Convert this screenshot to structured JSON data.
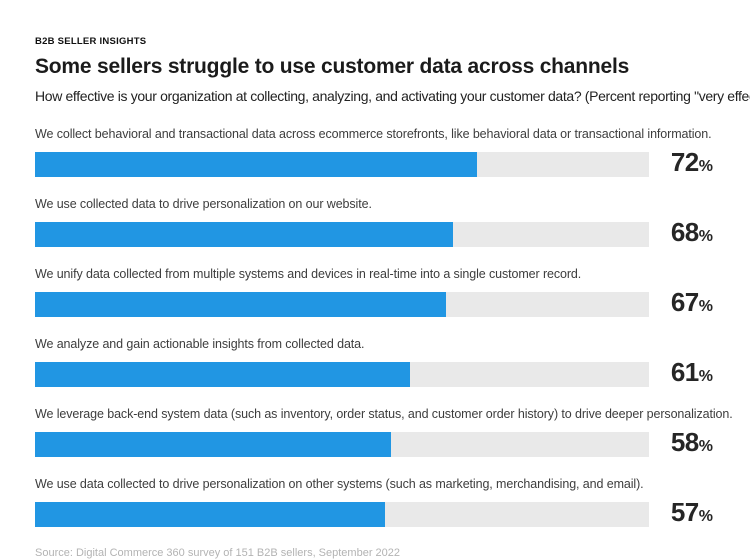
{
  "page": {
    "eyebrow": "B2B SELLER INSIGHTS",
    "title": "Some sellers struggle to use customer data across channels",
    "subtitle": "How effective is your organization at collecting, analyzing, and activating your customer data? (Percent reporting \"very effective.\")",
    "source": "Source: Digital Commerce 360 survey of 151 B2B sellers, September 2022"
  },
  "colors": {
    "bar_fill": "#2196e3",
    "bar_track": "#e9e9e9"
  },
  "chart_data": {
    "type": "bar",
    "orientation": "horizontal",
    "title": "Some sellers struggle to use customer data across channels",
    "subtitle": "How effective is your organization at collecting, analyzing, and activating your customer data? (Percent reporting \"very effective.\")",
    "categories": [
      "We collect behavioral and transactional data across ecommerce storefronts, like behavioral data or transactional information.",
      "We use collected data to drive personalization on our website.",
      "We unify data collected from multiple systems and devices in real-time into a single customer record.",
      "We analyze and gain actionable insights from collected data.",
      "We leverage back-end system data (such as inventory, order status, and customer order history) to drive deeper personalization.",
      "We use data collected to drive personalization on other systems (such as marketing, merchandising, and email)."
    ],
    "values": [
      72,
      68,
      67,
      61,
      58,
      57
    ],
    "unit": "%",
    "xlim": [
      0,
      100
    ],
    "grid": false,
    "legend": "none",
    "value_labels_position": "right-of-track",
    "source": "Source: Digital Commerce 360 survey of 151 B2B sellers, September 2022"
  }
}
